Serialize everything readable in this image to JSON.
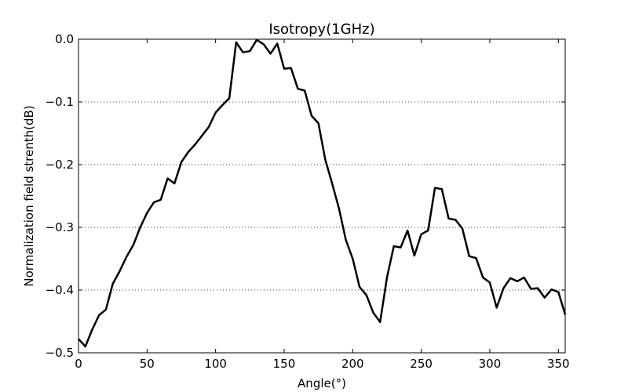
{
  "chart_data": {
    "type": "line",
    "title": "Isotropy(1GHz)",
    "xlabel": "Angle(°)",
    "ylabel": "Normalization field strenth(dB)",
    "xlim": [
      0,
      355
    ],
    "ylim": [
      -0.5,
      0.0
    ],
    "xticks": [
      0,
      50,
      100,
      150,
      200,
      250,
      300,
      350
    ],
    "xtick_labels": [
      "0",
      "50",
      "100",
      "150",
      "200",
      "250",
      "300",
      "350"
    ],
    "yticks": [
      0.0,
      -0.1,
      -0.2,
      -0.3,
      -0.4,
      -0.5
    ],
    "ytick_labels": [
      "0.0",
      "−0.1",
      "−0.2",
      "−0.3",
      "−0.4",
      "−0.5"
    ],
    "grid": "horizontal-dotted",
    "series": [
      {
        "name": "Isotropy",
        "color": "#000000",
        "x": [
          0,
          5,
          10,
          15,
          20,
          25,
          30,
          35,
          40,
          45,
          50,
          55,
          60,
          65,
          70,
          75,
          80,
          85,
          90,
          95,
          100,
          105,
          110,
          115,
          120,
          125,
          130,
          135,
          140,
          145,
          150,
          155,
          160,
          165,
          170,
          175,
          180,
          185,
          190,
          195,
          200,
          205,
          210,
          215,
          220,
          225,
          230,
          235,
          240,
          245,
          250,
          255,
          260,
          265,
          270,
          275,
          280,
          285,
          290,
          295,
          300,
          305,
          310,
          315,
          320,
          325,
          330,
          335,
          340,
          345,
          350,
          355
        ],
        "values": [
          -0.478,
          -0.49,
          -0.463,
          -0.44,
          -0.431,
          -0.39,
          -0.37,
          -0.347,
          -0.328,
          -0.3,
          -0.277,
          -0.26,
          -0.256,
          -0.222,
          -0.23,
          -0.196,
          -0.18,
          -0.168,
          -0.154,
          -0.14,
          -0.117,
          -0.105,
          -0.094,
          -0.005,
          -0.021,
          -0.019,
          -0.001,
          -0.008,
          -0.023,
          -0.007,
          -0.047,
          -0.046,
          -0.079,
          -0.082,
          -0.122,
          -0.134,
          -0.192,
          -0.23,
          -0.27,
          -0.32,
          -0.35,
          -0.395,
          -0.408,
          -0.436,
          -0.451,
          -0.38,
          -0.33,
          -0.332,
          -0.305,
          -0.345,
          -0.311,
          -0.305,
          -0.237,
          -0.239,
          -0.286,
          -0.288,
          -0.302,
          -0.346,
          -0.349,
          -0.38,
          -0.388,
          -0.428,
          -0.397,
          -0.381,
          -0.386,
          -0.38,
          -0.398,
          -0.397,
          -0.412,
          -0.399,
          -0.403,
          -0.439
        ]
      }
    ]
  }
}
